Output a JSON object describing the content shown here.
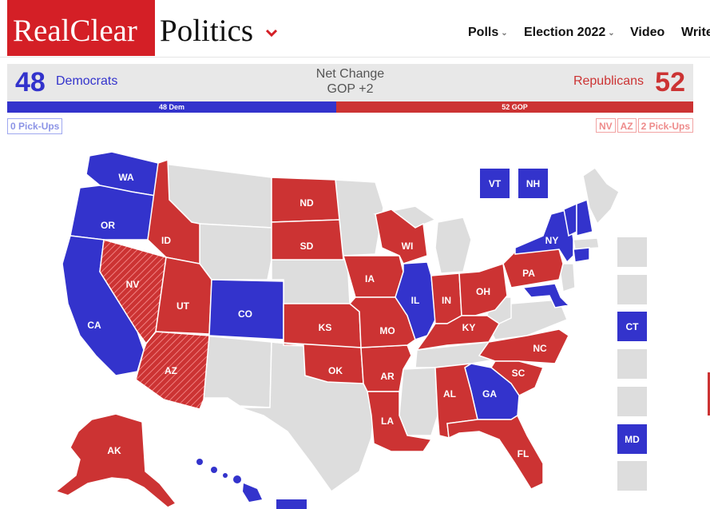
{
  "header": {
    "logo_real_clear": "RealClear",
    "logo_politics": "Politics",
    "nav": [
      {
        "label": "Polls",
        "has_dropdown": true
      },
      {
        "label": "Election 2022",
        "has_dropdown": true
      },
      {
        "label": "Video",
        "has_dropdown": false
      },
      {
        "label": "Write",
        "has_dropdown": false
      }
    ]
  },
  "summary": {
    "dem_count": "48",
    "dem_label": "Democrats",
    "net_change_title": "Net Change",
    "net_change_value": "GOP +2",
    "rep_label": "Republicans",
    "rep_count": "52",
    "dem_seats_label": "48 Dem",
    "rep_seats_label": "52 GOP",
    "dem_seats": 48,
    "rep_seats": 52
  },
  "pickups": {
    "dem_label": "0 Pick-Ups",
    "rep_states": [
      "NV",
      "AZ"
    ],
    "rep_label": "2 Pick-Ups"
  },
  "colors": {
    "dem": "#3333cc",
    "rep": "#cc3333",
    "no_race": "#dddddd",
    "brand": "#d41f26"
  },
  "states": {
    "WA": {
      "party": "dem"
    },
    "OR": {
      "party": "dem"
    },
    "CA": {
      "party": "dem"
    },
    "NV": {
      "party": "rep_pickup"
    },
    "AZ": {
      "party": "rep_pickup"
    },
    "ID": {
      "party": "rep"
    },
    "UT": {
      "party": "rep"
    },
    "CO": {
      "party": "dem"
    },
    "ND": {
      "party": "rep"
    },
    "SD": {
      "party": "rep"
    },
    "KS": {
      "party": "rep"
    },
    "OK": {
      "party": "rep"
    },
    "AR": {
      "party": "rep"
    },
    "LA": {
      "party": "rep"
    },
    "IA": {
      "party": "rep"
    },
    "MO": {
      "party": "rep"
    },
    "WI": {
      "party": "rep"
    },
    "IL": {
      "party": "dem"
    },
    "IN": {
      "party": "rep"
    },
    "OH": {
      "party": "rep"
    },
    "KY": {
      "party": "rep"
    },
    "PA": {
      "party": "rep"
    },
    "NY": {
      "party": "dem"
    },
    "NC": {
      "party": "rep"
    },
    "SC": {
      "party": "rep"
    },
    "GA": {
      "party": "dem"
    },
    "AL": {
      "party": "rep"
    },
    "FL": {
      "party": "rep"
    },
    "AK": {
      "party": "rep"
    },
    "HI": {
      "party": "dem"
    },
    "VT": {
      "party": "dem"
    },
    "NH": {
      "party": "dem"
    },
    "CT": {
      "party": "dem"
    },
    "MD": {
      "party": "dem"
    }
  },
  "small_state_boxes": [
    {
      "label": "VT",
      "party": "dem"
    },
    {
      "label": "NH",
      "party": "dem"
    },
    {
      "label": "",
      "party": "none"
    },
    {
      "label": "",
      "party": "none"
    },
    {
      "label": "CT",
      "party": "dem"
    },
    {
      "label": "",
      "party": "none"
    },
    {
      "label": "",
      "party": "none"
    },
    {
      "label": "MD",
      "party": "dem"
    },
    {
      "label": "",
      "party": "none"
    }
  ]
}
